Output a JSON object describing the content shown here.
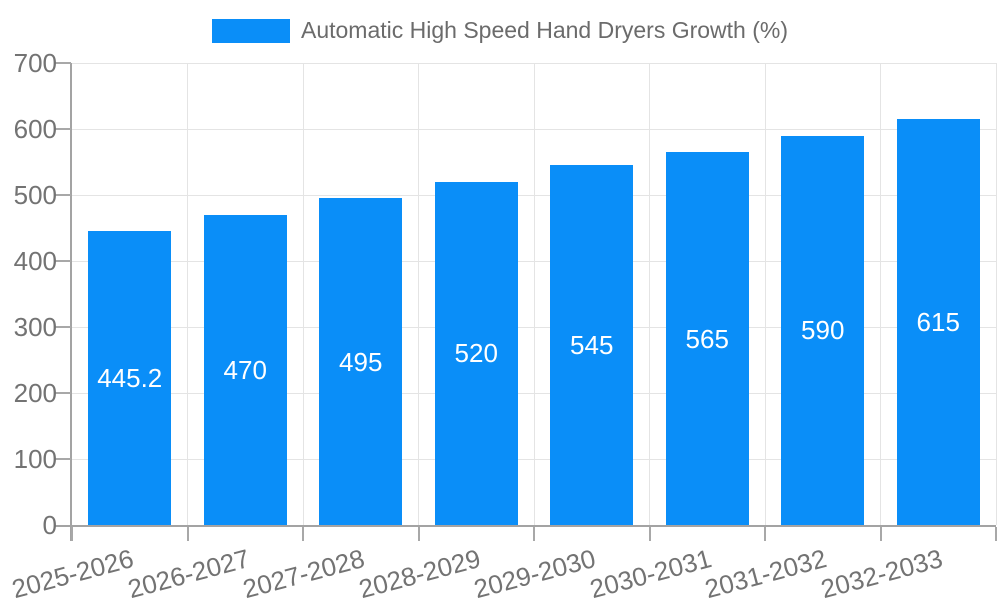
{
  "legend": {
    "label": "Automatic High Speed Hand Dryers Growth (%)"
  },
  "colors": {
    "background": "#ffffff",
    "bar": "#0a8ef8",
    "axis": "#a3a3a3",
    "tick": "#a8a8a8",
    "grid": "#e4e4e4",
    "tick_label": "#737373",
    "legend_label": "#6b6b6b",
    "value_label": "#ffffff"
  },
  "chart_data": {
    "type": "bar",
    "title": "Automatic High Speed Hand Dryers Growth (%)",
    "legend_entries": [
      "Automatic High Speed Hand Dryers Growth (%)"
    ],
    "legend_position": "top-center",
    "categories": [
      "2025-2026",
      "2026-2027",
      "2027-2028",
      "2028-2029",
      "2029-2030",
      "2030-2031",
      "2031-2032",
      "2032-2033"
    ],
    "series": [
      {
        "name": "Automatic High Speed Hand Dryers Growth (%)",
        "values": [
          445.2,
          470,
          495,
          520,
          545,
          565,
          590,
          615
        ]
      }
    ],
    "value_labels": [
      "445.2",
      "470",
      "495",
      "520",
      "545",
      "565",
      "590",
      "615"
    ],
    "xlabel": "",
    "ylabel": "",
    "ylim": [
      0,
      700
    ],
    "ytick_step": 100,
    "ytick_labels": [
      "0",
      "100",
      "200",
      "300",
      "400",
      "500",
      "600",
      "700"
    ],
    "grid": true,
    "x_tick_rotation_deg": -15,
    "bar_value_position": "center"
  }
}
